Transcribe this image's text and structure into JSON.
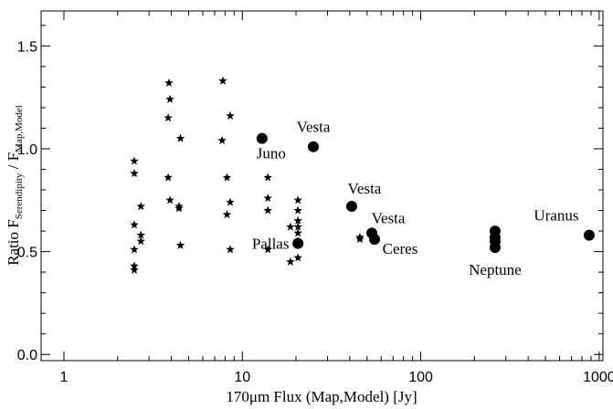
{
  "chart_data": {
    "type": "scatter",
    "x_label": "170μm Flux (Map,Model) [Jy]",
    "y_label": [
      "Ratio  F",
      "Serendipity",
      " / F",
      "Map,Model"
    ],
    "xscale": "log",
    "xlim": [
      0.745,
      1050
    ],
    "ylim": [
      -0.03,
      1.67
    ],
    "xticks": [
      1,
      10,
      100,
      1000
    ],
    "x_minor_ticks": [
      2,
      3,
      4,
      5,
      6,
      7,
      8,
      9,
      20,
      30,
      40,
      50,
      60,
      70,
      80,
      90,
      200,
      300,
      400,
      500,
      600,
      700,
      800,
      900
    ],
    "yticks": [
      {
        "value": 0,
        "label": "0.0"
      },
      {
        "value": 0.5,
        "label": "0.5"
      },
      {
        "value": 1,
        "label": "1.0"
      },
      {
        "value": 1.5,
        "label": "1.5"
      }
    ],
    "y_minor_ticks": [
      0.1,
      0.2,
      0.3,
      0.4,
      0.6,
      0.7,
      0.8,
      0.9,
      1.1,
      1.2,
      1.3,
      1.4,
      1.6
    ],
    "series": [
      {
        "marker": "star",
        "color": "#000000",
        "x": [
          2.48,
          2.48,
          2.48,
          2.48,
          2.48,
          2.48,
          2.7,
          2.7,
          2.7,
          3.88,
          3.93,
          3.84,
          3.84,
          3.93,
          4.42,
          4.42,
          4.5,
          4.5,
          7.78,
          7.7,
          8.2,
          8.2,
          8.55,
          8.55,
          8.55,
          13.9,
          13.9,
          13.9,
          13.9,
          18.6,
          18.6,
          20.5,
          20.5,
          20.5,
          20.5,
          20.5,
          20.5,
          20.5,
          45.6,
          45.6
        ],
        "values": [
          0.94,
          0.88,
          0.63,
          0.51,
          0.43,
          0.41,
          0.72,
          0.58,
          0.55,
          1.32,
          1.24,
          1.15,
          0.86,
          0.75,
          0.72,
          0.71,
          1.05,
          0.53,
          1.33,
          1.04,
          0.86,
          0.68,
          1.16,
          0.74,
          0.51,
          0.86,
          0.76,
          0.7,
          0.51,
          0.62,
          0.45,
          0.75,
          0.7,
          0.65,
          0.62,
          0.59,
          0.55,
          0.47,
          0.57,
          0.56
        ]
      },
      {
        "marker": "circle",
        "color": "#000000",
        "x": [
          12.9,
          25.0,
          41.0,
          20.5,
          53.2,
          55.1,
          261,
          261,
          261,
          261,
          879
        ],
        "values": [
          1.05,
          1.01,
          0.72,
          0.54,
          0.59,
          0.56,
          0.6,
          0.57,
          0.55,
          0.52,
          0.58
        ],
        "labels": [
          "Juno",
          "Vesta",
          "Vesta",
          "Pallas",
          "Vesta",
          "Ceres",
          null,
          null,
          null,
          "Neptune",
          "Uranus"
        ]
      }
    ]
  }
}
